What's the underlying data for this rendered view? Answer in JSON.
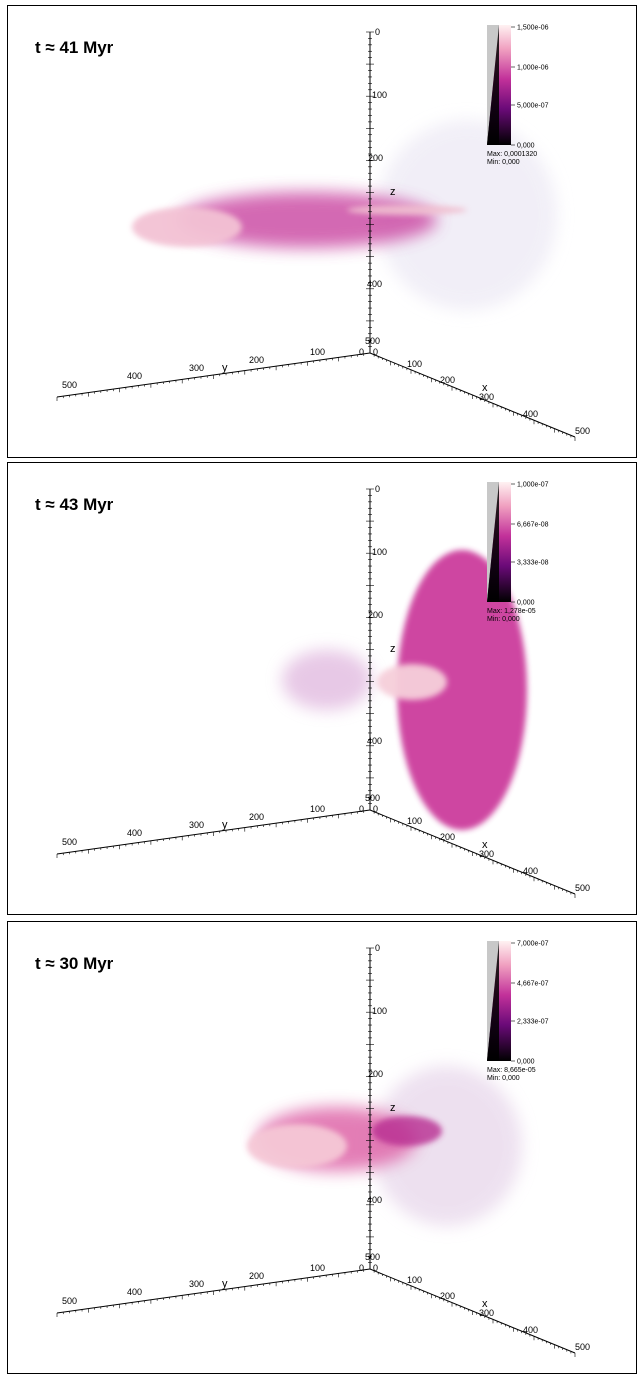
{
  "panels": [
    {
      "title": "t ≈ 41 Myr",
      "z_axis": {
        "label": "z",
        "ticks": [
          "0",
          "100",
          "200",
          "400",
          "500"
        ]
      },
      "y_axis": {
        "label": "y",
        "ticks": [
          "0",
          "100",
          "200",
          "300",
          "400",
          "500"
        ]
      },
      "x_axis": {
        "label": "x",
        "ticks": [
          "0",
          "100",
          "200",
          "300",
          "400",
          "500"
        ]
      },
      "colorbar": {
        "labels": [
          "1,500e-06",
          "1,000e-06",
          "5,000e-07",
          "0,000"
        ],
        "max": "Max: 0,0001320",
        "min": "Min: 0,000"
      }
    },
    {
      "title": "t ≈ 43 Myr",
      "z_axis": {
        "label": "z",
        "ticks": [
          "0",
          "100",
          "200",
          "400",
          "500"
        ]
      },
      "y_axis": {
        "label": "y",
        "ticks": [
          "0",
          "100",
          "200",
          "300",
          "400",
          "500"
        ]
      },
      "x_axis": {
        "label": "x",
        "ticks": [
          "0",
          "100",
          "200",
          "300",
          "400",
          "500"
        ]
      },
      "colorbar": {
        "labels": [
          "1,000e-07",
          "6,667e-08",
          "3,333e-08",
          "0,000"
        ],
        "max": "Max: 1,278e-05",
        "min": "Min: 0,000"
      }
    },
    {
      "title": "t ≈ 30 Myr",
      "z_axis": {
        "label": "z",
        "ticks": [
          "0",
          "100",
          "200",
          "400",
          "500"
        ]
      },
      "y_axis": {
        "label": "y",
        "ticks": [
          "0",
          "100",
          "200",
          "300",
          "400",
          "500"
        ]
      },
      "x_axis": {
        "label": "x",
        "ticks": [
          "0",
          "100",
          "200",
          "300",
          "400",
          "500"
        ]
      },
      "colorbar": {
        "labels": [
          "7,000e-07",
          "4,667e-07",
          "2,333e-07",
          "0,000"
        ],
        "max": "Max: 8,665e-05",
        "min": "Min: 0,000"
      }
    }
  ]
}
